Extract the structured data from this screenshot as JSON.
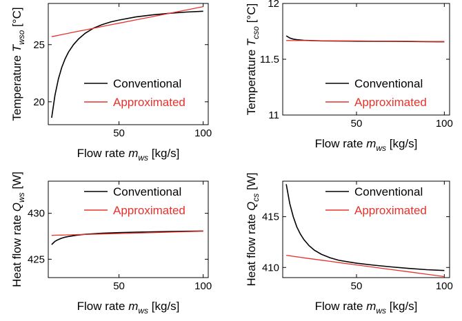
{
  "chart_data": [
    {
      "type": "line",
      "xlabel": {
        "text": "Flow rate ",
        "var": "m",
        "sub": "ws",
        "unit": " [kg/s]"
      },
      "ylabel": {
        "text": "Temperature ",
        "var": "T",
        "sub": "wso",
        "unit": " [°C]"
      },
      "xlim": [
        8,
        103
      ],
      "ylim": [
        18,
        28.6
      ],
      "xticks": [
        50,
        100
      ],
      "yticks": [
        20,
        25
      ],
      "legend_position": "lower-right",
      "x": [
        10,
        12,
        14,
        16,
        18,
        20,
        23,
        26,
        30,
        35,
        40,
        45,
        50,
        60,
        70,
        80,
        90,
        100
      ],
      "series": [
        {
          "name": "Conventional",
          "color": "#000000",
          "values": [
            18.6,
            20.6,
            22.0,
            23.0,
            23.75,
            24.35,
            25.0,
            25.5,
            26.0,
            26.45,
            26.75,
            26.98,
            27.15,
            27.42,
            27.6,
            27.74,
            27.85,
            27.92
          ]
        },
        {
          "name": "Approximated",
          "color": "#e8302a",
          "values": [
            25.7,
            25.75,
            25.81,
            25.87,
            25.93,
            25.99,
            26.08,
            26.17,
            26.28,
            26.43,
            26.58,
            26.73,
            26.87,
            27.16,
            27.45,
            27.74,
            28.03,
            28.32
          ]
        }
      ]
    },
    {
      "type": "line",
      "xlabel": {
        "text": "Flow rate ",
        "var": "m",
        "sub": "ws",
        "unit": " [kg/s]"
      },
      "ylabel": {
        "text": "Temperature ",
        "var": "T",
        "sub": "cso",
        "unit": " [°C]"
      },
      "xlim": [
        8,
        103
      ],
      "ylim": [
        11,
        12
      ],
      "xticks": [
        50,
        100
      ],
      "yticks": [
        11,
        11.5,
        12
      ],
      "legend_position": "lower-right",
      "x": [
        10,
        12,
        14,
        16,
        18,
        20,
        25,
        30,
        40,
        50,
        60,
        70,
        80,
        90,
        100
      ],
      "series": [
        {
          "name": "Conventional",
          "color": "#000000",
          "values": [
            11.71,
            11.69,
            11.68,
            11.675,
            11.672,
            11.67,
            11.667,
            11.665,
            11.663,
            11.662,
            11.661,
            11.66,
            11.659,
            11.658,
            11.657
          ]
        },
        {
          "name": "Approximated",
          "color": "#e8302a",
          "values": [
            11.668,
            11.668,
            11.667,
            11.667,
            11.667,
            11.667,
            11.666,
            11.666,
            11.665,
            11.664,
            11.663,
            11.662,
            11.661,
            11.66,
            11.659
          ]
        }
      ]
    },
    {
      "type": "line",
      "xlabel": {
        "text": "Flow rate ",
        "var": "m",
        "sub": "ws",
        "unit": " [kg/s]"
      },
      "ylabel": {
        "text": "Heat flow rate ",
        "var": "Q",
        "sub": "ws",
        "unit": " [W]"
      },
      "xlim": [
        8,
        103
      ],
      "ylim": [
        423,
        433.5
      ],
      "xticks": [
        50,
        100
      ],
      "yticks": [
        425,
        430
      ],
      "legend_position": "top-right",
      "x": [
        10,
        12,
        14,
        16,
        18,
        20,
        25,
        30,
        40,
        50,
        60,
        70,
        80,
        90,
        100
      ],
      "series": [
        {
          "name": "Conventional",
          "color": "#000000",
          "values": [
            426.6,
            426.95,
            427.15,
            427.3,
            427.4,
            427.48,
            427.62,
            427.72,
            427.83,
            427.9,
            427.95,
            427.99,
            428.02,
            428.05,
            428.07
          ]
        },
        {
          "name": "Approximated",
          "color": "#e8302a",
          "values": [
            427.6,
            427.61,
            427.62,
            427.63,
            427.64,
            427.65,
            427.67,
            427.7,
            427.75,
            427.8,
            427.85,
            427.9,
            427.95,
            428.0,
            428.05
          ]
        }
      ]
    },
    {
      "type": "line",
      "xlabel": {
        "text": "Flow rate ",
        "var": "m",
        "sub": "ws",
        "unit": " [kg/s]"
      },
      "ylabel": {
        "text": "Heat flow rate ",
        "var": "Q",
        "sub": "cs",
        "unit": " [W]"
      },
      "xlim": [
        8,
        103
      ],
      "ylim": [
        409,
        418.5
      ],
      "xticks": [
        50,
        100
      ],
      "yticks": [
        410,
        415
      ],
      "legend_position": "top-right",
      "x": [
        10,
        12,
        14,
        16,
        18,
        20,
        23,
        26,
        30,
        35,
        40,
        50,
        60,
        70,
        80,
        90,
        100
      ],
      "series": [
        {
          "name": "Conventional",
          "color": "#000000",
          "values": [
            418.2,
            416.3,
            415.0,
            414.0,
            413.3,
            412.75,
            412.15,
            411.7,
            411.3,
            410.95,
            410.7,
            410.42,
            410.22,
            410.05,
            409.9,
            409.78,
            409.7
          ]
        },
        {
          "name": "Approximated",
          "color": "#e8302a",
          "values": [
            411.2,
            411.15,
            411.1,
            411.05,
            411.0,
            410.95,
            410.88,
            410.81,
            410.72,
            410.6,
            410.48,
            410.25,
            410.02,
            409.79,
            409.56,
            409.33,
            409.1
          ]
        }
      ]
    }
  ]
}
